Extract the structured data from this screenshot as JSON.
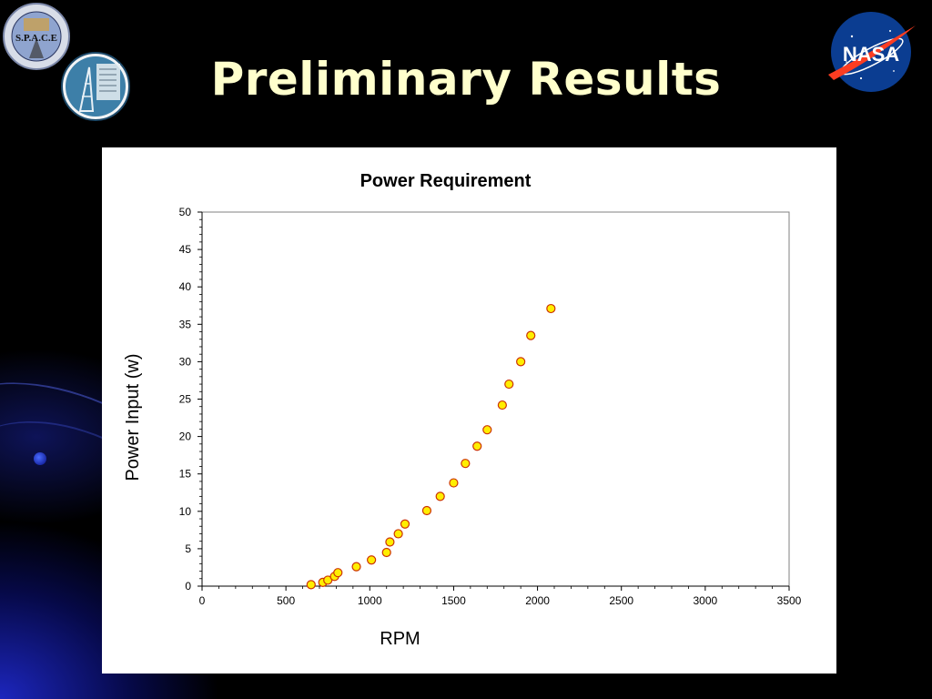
{
  "slide": {
    "title": "Preliminary Results",
    "background_color": "#000000",
    "title_color": "#ffffcc",
    "logos": [
      {
        "name": "space-logo",
        "text": "S.P.A.C.E"
      },
      {
        "name": "mirror-logo",
        "text": ""
      },
      {
        "name": "nasa-logo",
        "text": "NASA"
      }
    ]
  },
  "chart_data": {
    "type": "scatter",
    "title": "Power Requirement",
    "xlabel": "RPM",
    "ylabel": "Power Input (w)",
    "xlim": [
      0,
      3500
    ],
    "ylim": [
      0,
      50
    ],
    "x_ticks": [
      0,
      500,
      1000,
      1500,
      2000,
      2500,
      3000,
      3500
    ],
    "y_ticks": [
      0,
      5,
      10,
      15,
      20,
      25,
      30,
      35,
      40,
      45,
      50
    ],
    "grid": false,
    "legend": "none",
    "marker_fill": "#ffee00",
    "marker_stroke": "#cc3300",
    "series": [
      {
        "points": [
          [
            650,
            0.2
          ],
          [
            720,
            0.5
          ],
          [
            750,
            0.8
          ],
          [
            790,
            1.3
          ],
          [
            810,
            1.8
          ],
          [
            920,
            2.6
          ],
          [
            1010,
            3.5
          ],
          [
            1100,
            4.5
          ],
          [
            1120,
            5.9
          ],
          [
            1170,
            7.0
          ],
          [
            1210,
            8.3
          ],
          [
            1340,
            10.1
          ],
          [
            1420,
            12.0
          ],
          [
            1500,
            13.8
          ],
          [
            1570,
            16.4
          ],
          [
            1640,
            18.7
          ],
          [
            1700,
            20.9
          ],
          [
            1790,
            24.2
          ],
          [
            1830,
            27.0
          ],
          [
            1900,
            30.0
          ],
          [
            1960,
            33.5
          ],
          [
            2080,
            37.1
          ]
        ]
      }
    ]
  }
}
